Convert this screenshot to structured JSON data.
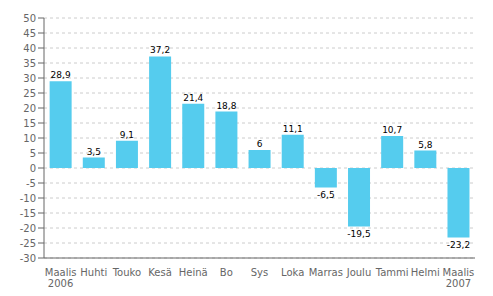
{
  "chart_data": {
    "type": "bar",
    "categories": [
      "Maalis\n2006",
      "Huhti",
      "Touko",
      "Kesä",
      "Heinä",
      "Bo",
      "Sys",
      "Loka",
      "Marras",
      "Joulu",
      "Tammi",
      "Helmi",
      "Maalis\n2007"
    ],
    "values": [
      28.9,
      3.5,
      9.1,
      37.2,
      21.4,
      18.8,
      6,
      11.1,
      -6.5,
      -19.5,
      10.7,
      5.8,
      -23.2
    ],
    "value_labels": [
      "28,9",
      "3,5",
      "9,1",
      "37,2",
      "21,4",
      "18,8",
      "6",
      "11,1",
      "-6,5",
      "-19,5",
      "10,7",
      "5,8",
      "-23,2"
    ],
    "data_labels": true,
    "color": "#55CCEE",
    "ylim": [
      -30,
      50
    ],
    "yticks": [
      -30,
      -25,
      -20,
      -15,
      -10,
      -5,
      0,
      5,
      10,
      15,
      20,
      25,
      30,
      35,
      40,
      45,
      50
    ],
    "grid": true
  }
}
